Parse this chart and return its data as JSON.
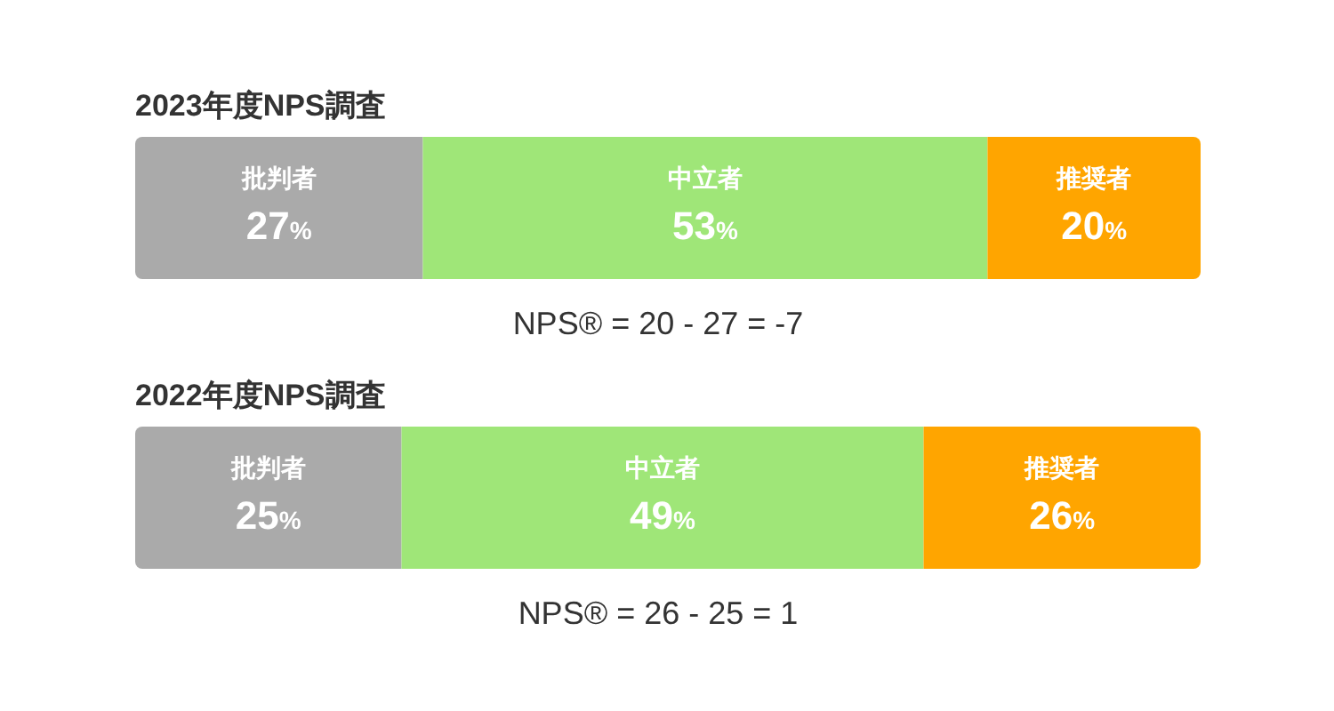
{
  "chart_data": [
    {
      "type": "bar",
      "orientation": "horizontal",
      "stacked": true,
      "title": "2023年度NPS調査",
      "categories": [
        null
      ],
      "xlim": [
        0,
        100
      ],
      "tick_labels": false,
      "series": [
        {
          "name": "批判者",
          "color": "#aaaaaa",
          "values": [
            27
          ],
          "value_labels": [
            "27%"
          ]
        },
        {
          "name": "中立者",
          "color": "#9fe678",
          "values": [
            53
          ],
          "value_labels": [
            "53%"
          ]
        },
        {
          "name": "推奨者",
          "color": "#ffa500",
          "values": [
            20
          ],
          "value_labels": [
            "20%"
          ]
        }
      ],
      "annotations": [
        "NPS® = 20 - 27 = -7"
      ]
    },
    {
      "type": "bar",
      "orientation": "horizontal",
      "stacked": true,
      "title": "2022年度NPS調査",
      "categories": [
        null
      ],
      "xlim": [
        0,
        100
      ],
      "tick_labels": false,
      "series": [
        {
          "name": "批判者",
          "color": "#aaaaaa",
          "values": [
            25
          ],
          "value_labels": [
            "25%"
          ]
        },
        {
          "name": "中立者",
          "color": "#9fe678",
          "values": [
            49
          ],
          "value_labels": [
            "49%"
          ]
        },
        {
          "name": "推奨者",
          "color": "#ffa500",
          "values": [
            26
          ],
          "value_labels": [
            "26%"
          ]
        }
      ],
      "annotations": [
        "NPS® = 26 - 25 = 1"
      ]
    }
  ]
}
